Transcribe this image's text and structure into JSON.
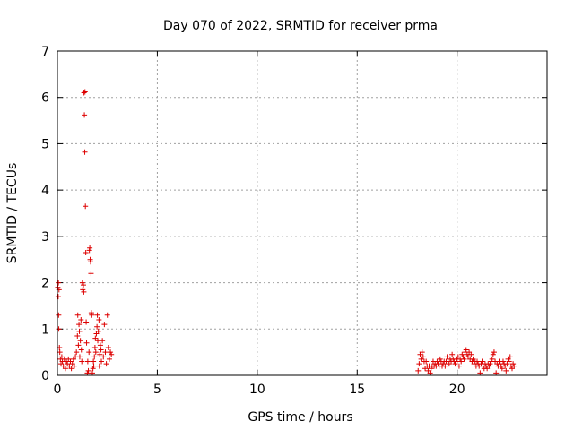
{
  "chart_data": {
    "type": "scatter",
    "title": "Day 070 of 2022, SRMTID for receiver prma",
    "xlabel": "GPS time / hours",
    "ylabel": "SRMTID / TECUs",
    "xlim": [
      0,
      24.5
    ],
    "ylim": [
      0,
      7
    ],
    "xticks": [
      0,
      5,
      10,
      15,
      20
    ],
    "yticks": [
      0,
      1,
      2,
      3,
      4,
      5,
      6,
      7
    ],
    "grid": true,
    "marker": "plus",
    "color": "#dd0000",
    "series": [
      {
        "points": [
          [
            0.02,
            1.9
          ],
          [
            0.04,
            1.7
          ],
          [
            0.05,
            2.0
          ],
          [
            0.06,
            1.3
          ],
          [
            0.07,
            1.0
          ],
          [
            0.08,
            1.85
          ],
          [
            0.1,
            0.6
          ],
          [
            0.12,
            0.5
          ],
          [
            0.15,
            0.35
          ],
          [
            0.18,
            0.25
          ],
          [
            0.22,
            0.4
          ],
          [
            0.25,
            0.3
          ],
          [
            0.3,
            0.2
          ],
          [
            0.35,
            0.35
          ],
          [
            0.4,
            0.15
          ],
          [
            0.45,
            0.3
          ],
          [
            0.5,
            0.25
          ],
          [
            0.55,
            0.35
          ],
          [
            0.6,
            0.2
          ],
          [
            0.65,
            0.3
          ],
          [
            0.7,
            0.15
          ],
          [
            0.75,
            0.25
          ],
          [
            0.8,
            0.35
          ],
          [
            0.85,
            0.2
          ],
          [
            0.9,
            0.4
          ],
          [
            0.95,
            0.5
          ],
          [
            1.0,
            0.85
          ],
          [
            1.02,
            1.3
          ],
          [
            1.05,
            0.65
          ],
          [
            1.08,
            1.1
          ],
          [
            1.1,
            0.95
          ],
          [
            1.12,
            0.4
          ],
          [
            1.15,
            0.75
          ],
          [
            1.18,
            1.2
          ],
          [
            1.2,
            0.55
          ],
          [
            1.22,
            0.3
          ],
          [
            1.25,
            2.0
          ],
          [
            1.27,
            1.85
          ],
          [
            1.3,
            1.95
          ],
          [
            1.32,
            1.8
          ],
          [
            1.33,
            6.1
          ],
          [
            1.35,
            5.62
          ],
          [
            1.37,
            4.82
          ],
          [
            1.38,
            6.12
          ],
          [
            1.4,
            3.65
          ],
          [
            1.42,
            2.65
          ],
          [
            1.44,
            1.15
          ],
          [
            1.46,
            0.7
          ],
          [
            1.5,
            0.05
          ],
          [
            1.52,
            0.3
          ],
          [
            1.55,
            0.1
          ],
          [
            1.58,
            0.5
          ],
          [
            1.6,
            2.7
          ],
          [
            1.62,
            2.75
          ],
          [
            1.64,
            2.5
          ],
          [
            1.66,
            2.45
          ],
          [
            1.68,
            2.2
          ],
          [
            1.7,
            1.35
          ],
          [
            1.72,
            1.3
          ],
          [
            1.75,
            0.05
          ],
          [
            1.78,
            0.15
          ],
          [
            1.8,
            0.3
          ],
          [
            1.82,
            0.2
          ],
          [
            1.85,
            0.4
          ],
          [
            1.88,
            0.6
          ],
          [
            1.9,
            0.8
          ],
          [
            1.92,
            0.5
          ],
          [
            1.95,
            0.9
          ],
          [
            1.98,
            1.05
          ],
          [
            2.0,
            1.3
          ],
          [
            2.02,
            0.75
          ],
          [
            2.05,
            0.95
          ],
          [
            2.08,
            1.2
          ],
          [
            2.1,
            0.2
          ],
          [
            2.12,
            0.45
          ],
          [
            2.15,
            0.65
          ],
          [
            2.18,
            0.55
          ],
          [
            2.2,
            0.3
          ],
          [
            2.25,
            0.75
          ],
          [
            2.3,
            0.4
          ],
          [
            2.35,
            1.1
          ],
          [
            2.4,
            0.5
          ],
          [
            2.45,
            0.25
          ],
          [
            2.5,
            1.3
          ],
          [
            2.55,
            0.6
          ],
          [
            2.6,
            0.35
          ],
          [
            2.65,
            0.5
          ],
          [
            2.7,
            0.45
          ]
        ]
      },
      {
        "points": [
          [
            18.05,
            0.1
          ],
          [
            18.1,
            0.25
          ],
          [
            18.15,
            0.45
          ],
          [
            18.2,
            0.35
          ],
          [
            18.25,
            0.5
          ],
          [
            18.3,
            0.4
          ],
          [
            18.35,
            0.3
          ],
          [
            18.4,
            0.15
          ],
          [
            18.45,
            0.3
          ],
          [
            18.5,
            0.2
          ],
          [
            18.55,
            0.1
          ],
          [
            18.6,
            0.2
          ],
          [
            18.65,
            0.05
          ],
          [
            18.7,
            0.15
          ],
          [
            18.75,
            0.2
          ],
          [
            18.8,
            0.3
          ],
          [
            18.85,
            0.2
          ],
          [
            18.9,
            0.25
          ],
          [
            18.95,
            0.2
          ],
          [
            19.0,
            0.3
          ],
          [
            19.05,
            0.25
          ],
          [
            19.1,
            0.2
          ],
          [
            19.15,
            0.35
          ],
          [
            19.2,
            0.3
          ],
          [
            19.25,
            0.2
          ],
          [
            19.3,
            0.25
          ],
          [
            19.35,
            0.3
          ],
          [
            19.4,
            0.2
          ],
          [
            19.45,
            0.3
          ],
          [
            19.5,
            0.4
          ],
          [
            19.55,
            0.3
          ],
          [
            19.6,
            0.25
          ],
          [
            19.65,
            0.35
          ],
          [
            19.7,
            0.3
          ],
          [
            19.75,
            0.45
          ],
          [
            19.8,
            0.35
          ],
          [
            19.85,
            0.3
          ],
          [
            19.9,
            0.25
          ],
          [
            19.95,
            0.35
          ],
          [
            20.0,
            0.3
          ],
          [
            20.05,
            0.4
          ],
          [
            20.1,
            0.2
          ],
          [
            20.15,
            0.35
          ],
          [
            20.2,
            0.3
          ],
          [
            20.25,
            0.45
          ],
          [
            20.3,
            0.4
          ],
          [
            20.35,
            0.35
          ],
          [
            20.4,
            0.5
          ],
          [
            20.45,
            0.55
          ],
          [
            20.5,
            0.45
          ],
          [
            20.55,
            0.4
          ],
          [
            20.6,
            0.5
          ],
          [
            20.65,
            0.35
          ],
          [
            20.7,
            0.45
          ],
          [
            20.75,
            0.3
          ],
          [
            20.8,
            0.35
          ],
          [
            20.85,
            0.25
          ],
          [
            20.9,
            0.3
          ],
          [
            20.95,
            0.2
          ],
          [
            21.0,
            0.3
          ],
          [
            21.05,
            0.25
          ],
          [
            21.1,
            0.2
          ],
          [
            21.15,
            0.05
          ],
          [
            21.2,
            0.25
          ],
          [
            21.25,
            0.3
          ],
          [
            21.3,
            0.2
          ],
          [
            21.35,
            0.15
          ],
          [
            21.4,
            0.25
          ],
          [
            21.45,
            0.2
          ],
          [
            21.5,
            0.15
          ],
          [
            21.55,
            0.25
          ],
          [
            21.6,
            0.2
          ],
          [
            21.65,
            0.25
          ],
          [
            21.7,
            0.3
          ],
          [
            21.75,
            0.35
          ],
          [
            21.8,
            0.45
          ],
          [
            21.85,
            0.5
          ],
          [
            21.9,
            0.3
          ],
          [
            21.95,
            0.05
          ],
          [
            22.0,
            0.25
          ],
          [
            22.05,
            0.2
          ],
          [
            22.1,
            0.3
          ],
          [
            22.15,
            0.25
          ],
          [
            22.2,
            0.2
          ],
          [
            22.25,
            0.15
          ],
          [
            22.3,
            0.3
          ],
          [
            22.35,
            0.25
          ],
          [
            22.4,
            0.2
          ],
          [
            22.45,
            0.1
          ],
          [
            22.5,
            0.25
          ],
          [
            22.55,
            0.35
          ],
          [
            22.6,
            0.3
          ],
          [
            22.65,
            0.4
          ],
          [
            22.7,
            0.2
          ],
          [
            22.75,
            0.15
          ],
          [
            22.8,
            0.25
          ],
          [
            22.85,
            0.2
          ]
        ]
      }
    ]
  }
}
